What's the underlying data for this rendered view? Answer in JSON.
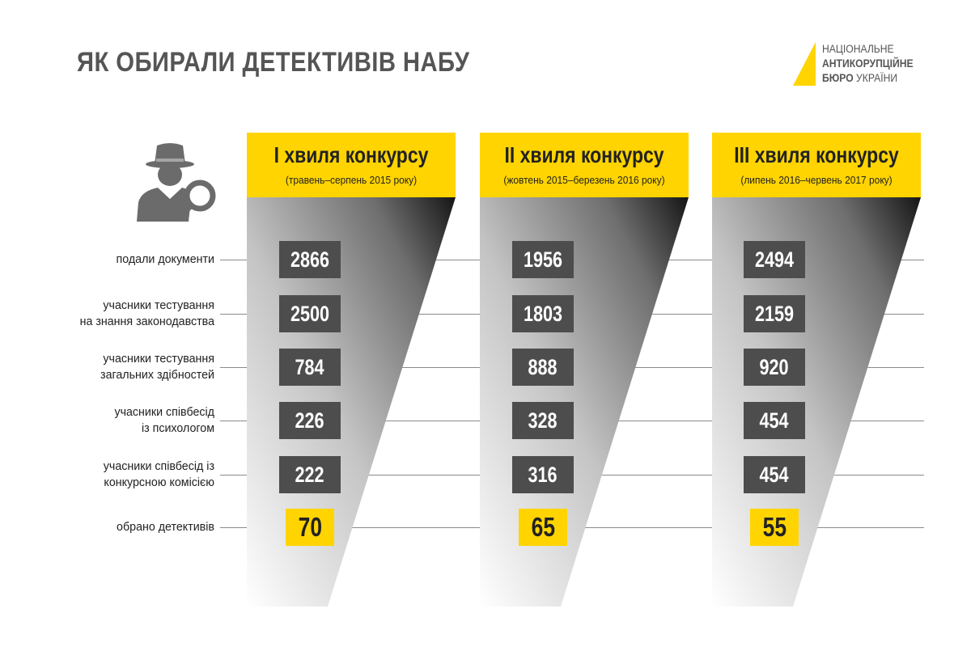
{
  "page_title": "ЯК ОБИРАЛИ ДЕТЕКТИВІВ НАБУ",
  "logo": {
    "line1": "НАЦІОНАЛЬНЕ",
    "line2": "АНТИКОРУПЦІЙНЕ",
    "line3_bold": "БЮРО",
    "line3_normal": " УКРАЇНИ",
    "accent": "#ffd400"
  },
  "icons": {
    "person": "detective-icon"
  },
  "colors": {
    "accent": "#ffd400",
    "value_box": "#4d4d4d",
    "text": "#555555"
  },
  "chart_data": {
    "type": "table",
    "title": "ЯК ОБИРАЛИ ДЕТЕКТИВІВ НАБУ",
    "rows": [
      [
        "подали документи"
      ],
      [
        "учасники тестування",
        "на знання законодавства"
      ],
      [
        "учасники тестування",
        "загальних здібностей"
      ],
      [
        "учасники співбесід",
        "із психологом"
      ],
      [
        "учасники співбесід із",
        "конкурсною комісією"
      ],
      [
        "обрано детективів"
      ]
    ],
    "series": [
      {
        "name": "I хвиля конкурсу",
        "period": "(травень–серпень 2015 року)",
        "values": [
          2866,
          2500,
          784,
          226,
          222,
          70
        ]
      },
      {
        "name": "II хвиля конкурсу",
        "period": "(жовтень 2015–березень 2016 року)",
        "values": [
          1956,
          1803,
          888,
          328,
          316,
          65
        ]
      },
      {
        "name": "III хвиля конкурсу",
        "period": "(липень 2016–червень 2017 року)",
        "values": [
          2494,
          2159,
          920,
          454,
          454,
          55
        ]
      }
    ]
  }
}
